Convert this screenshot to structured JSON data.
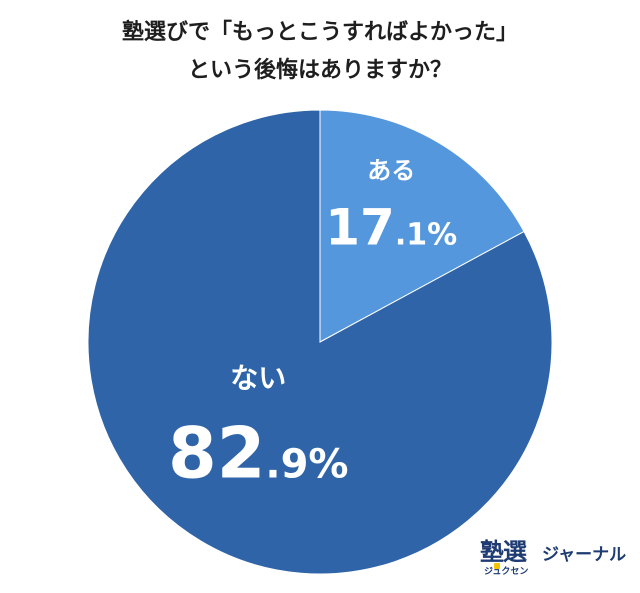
{
  "chart_data": {
    "type": "pie",
    "title_lines": [
      "塾選びで「もっとこうすればよかった」",
      "という後悔はありますか？"
    ],
    "slices": [
      {
        "label": "ある",
        "value": 17.1,
        "int_part": "17",
        "dec_part": ".1%",
        "color": "#5597dd"
      },
      {
        "label": "ない",
        "value": 82.9,
        "int_part": "82",
        "dec_part": ".9%",
        "color": "#2f65a8"
      }
    ],
    "start_angle_deg": 0,
    "direction": "clockwise"
  },
  "logo": {
    "main": "塾選",
    "sub": "ジュクセン",
    "tail": "ジャーナル"
  }
}
